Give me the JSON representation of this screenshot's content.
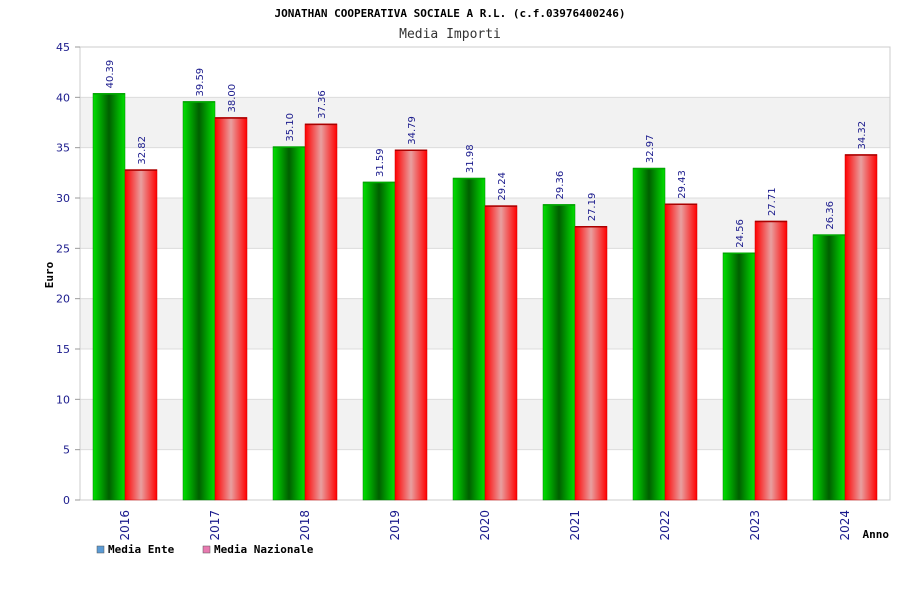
{
  "chart_data": {
    "type": "bar",
    "title": "JONATHAN COOPERATIVA SOCIALE A R.L. (c.f.03976400246)",
    "subtitle": "Media Importi",
    "xlabel": "Anno",
    "ylabel": "Euro",
    "ylim": [
      0,
      45
    ],
    "yticks": [
      0,
      5,
      10,
      15,
      20,
      25,
      30,
      35,
      40,
      45
    ],
    "categories": [
      "2016",
      "2017",
      "2018",
      "2019",
      "2020",
      "2021",
      "2022",
      "2023",
      "2024"
    ],
    "series": [
      {
        "name": "Media Ente",
        "values": [
          40.39,
          39.59,
          35.1,
          31.59,
          31.98,
          29.36,
          32.97,
          24.56,
          26.36
        ],
        "labels": [
          "40.39",
          "39.59",
          "35.10",
          "31.59",
          "31.98",
          "29.36",
          "32.97",
          "24.56",
          "26.36"
        ]
      },
      {
        "name": "Media Nazionale",
        "values": [
          32.82,
          38.0,
          37.36,
          34.79,
          29.24,
          27.19,
          29.43,
          27.71,
          34.32
        ],
        "labels": [
          "32.82",
          "38.00",
          "37.36",
          "34.79",
          "29.24",
          "27.19",
          "29.43",
          "27.71",
          "34.32"
        ]
      }
    ],
    "legend": [
      {
        "name": "Media Ente",
        "color": "#5b9bd5"
      },
      {
        "name": "Media Nazionale",
        "color": "#e87ab0"
      }
    ],
    "legend_position": "bottom-left",
    "grid": true,
    "colors": {
      "ente_dark": "#005f00",
      "ente_light": "#00e000",
      "naz_dark": "#ff0000",
      "naz_light": "#e8a0a0",
      "band": "#f2f2f2"
    }
  }
}
